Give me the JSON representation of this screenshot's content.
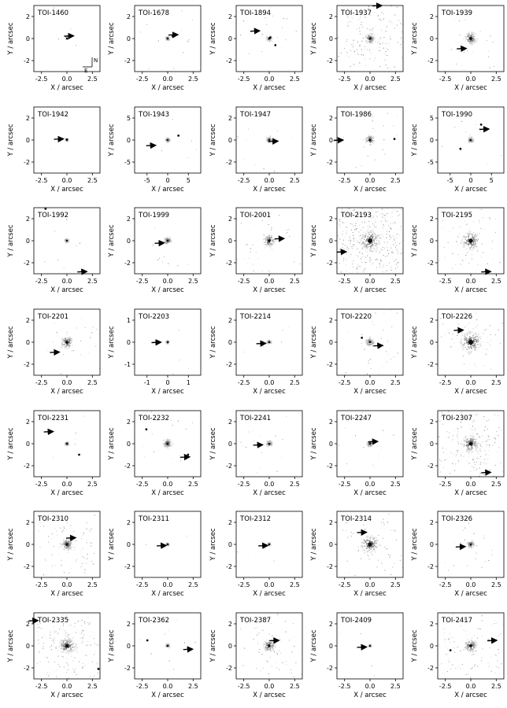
{
  "figure": {
    "axis_labels": {
      "x": "X / arcsec",
      "y": "Y / arcsec"
    },
    "compass": {
      "north": "N",
      "east": "E"
    },
    "panels": [
      {
        "target": "TOI-1460",
        "x_ticks": [
          "-2.5",
          "0.0",
          "2.5"
        ],
        "y_ticks": [
          "2",
          "0",
          "-2"
        ],
        "blob": 0.02,
        "noise": 0.02,
        "companions": [],
        "arrow": {
          "x": 0.5,
          "y": 0.25
        },
        "compass": true
      },
      {
        "target": "TOI-1678",
        "x_ticks": [
          "-2.5",
          "0.0",
          "2.5"
        ],
        "y_ticks": [
          "2",
          "0",
          "-2"
        ],
        "blob": 0.06,
        "noise": 0.05,
        "companions": [
          {
            "x": 0.5,
            "y": 0.2
          }
        ],
        "arrow": {
          "x": 0.85,
          "y": 0.35
        }
      },
      {
        "target": "TOI-1894",
        "x_ticks": [
          "-2.5",
          "0.0",
          "2.5"
        ],
        "y_ticks": [
          "2",
          "0",
          "-2"
        ],
        "blob": 0.1,
        "noise": 0.05,
        "companions": [
          {
            "x": 0.1,
            "y": 0.1
          },
          {
            "x": 0.6,
            "y": -0.6
          }
        ],
        "arrow": {
          "x": -1.1,
          "y": 0.7
        }
      },
      {
        "target": "TOI-1937",
        "x_ticks": [
          "-2.5",
          "0.0",
          "2.5"
        ],
        "y_ticks": [
          "2",
          "0",
          "-2"
        ],
        "blob": 0.22,
        "noise": 0.45,
        "companions": [],
        "arrow": {
          "x": 1.0,
          "y": 3.0
        }
      },
      {
        "target": "TOI-1939",
        "x_ticks": [
          "-2.5",
          "0.0",
          "2.5"
        ],
        "y_ticks": [
          "2",
          "0",
          "-2"
        ],
        "blob": 0.3,
        "noise": 0.15,
        "companions": [],
        "arrow": {
          "x": -0.6,
          "y": -0.9
        }
      },
      {
        "target": "TOI-1942",
        "x_ticks": [
          "-2.5",
          "0.0",
          "2.5"
        ],
        "y_ticks": [
          "2",
          "0",
          "-2"
        ],
        "blob": 0.02,
        "noise": 0.01,
        "companions": [
          {
            "x": 0.0,
            "y": 0.05
          }
        ],
        "arrow": {
          "x": -0.5,
          "y": 0.1
        }
      },
      {
        "target": "TOI-1943",
        "x_ticks": [
          "-5",
          "0",
          "5"
        ],
        "y_ticks": [
          "5",
          "0",
          "-5"
        ],
        "blob": 0.08,
        "noise": 0.03,
        "companions": [
          {
            "x": 2.6,
            "y": 1.0
          }
        ],
        "arrow": {
          "x": -3.3,
          "y": -1.2
        }
      },
      {
        "target": "TOI-1947",
        "x_ticks": [
          "-2.5",
          "0.0",
          "2.5"
        ],
        "y_ticks": [
          "2",
          "0",
          "-2"
        ],
        "blob": 0.1,
        "noise": 0.06,
        "companions": [],
        "arrow": {
          "x": 0.7,
          "y": -0.1
        }
      },
      {
        "target": "TOI-1986",
        "x_ticks": [
          "-2.5",
          "0.0",
          "2.5"
        ],
        "y_ticks": [
          "2",
          "0",
          "-2"
        ],
        "blob": 0.2,
        "noise": 0.08,
        "companions": [
          {
            "x": 2.4,
            "y": 0.1
          }
        ],
        "arrow": {
          "x": -2.8,
          "y": 0.0
        }
      },
      {
        "target": "TOI-1990",
        "x_ticks": [
          "-5",
          "0",
          "5"
        ],
        "y_ticks": [
          "5",
          "0",
          "-5"
        ],
        "blob": 0.1,
        "noise": 0.04,
        "companions": [
          {
            "x": 2.5,
            "y": 3.5
          },
          {
            "x": -2.5,
            "y": -2.0
          }
        ],
        "arrow": {
          "x": 4.0,
          "y": 2.5
        }
      },
      {
        "target": "TOI-1992",
        "x_ticks": [
          "-2.5",
          "0.0",
          "2.5"
        ],
        "y_ticks": [
          "2",
          "0",
          "-2"
        ],
        "blob": 0.06,
        "noise": 0.03,
        "companions": [
          {
            "x": -2.1,
            "y": 2.9
          }
        ],
        "arrow": {
          "x": 1.8,
          "y": -2.8
        }
      },
      {
        "target": "TOI-1999",
        "x_ticks": [
          "-2.5",
          "0.0",
          "2.5"
        ],
        "y_ticks": [
          "2",
          "0",
          "-2"
        ],
        "blob": 0.15,
        "noise": 0.05,
        "companions": [],
        "arrow": {
          "x": -0.5,
          "y": -0.2
        }
      },
      {
        "target": "TOI-2001",
        "x_ticks": [
          "-2.5",
          "0.0",
          "2.5"
        ],
        "y_ticks": [
          "2",
          "0",
          "-2"
        ],
        "blob": 0.28,
        "noise": 0.15,
        "companions": [],
        "arrow": {
          "x": 1.3,
          "y": 0.2
        }
      },
      {
        "target": "TOI-2193",
        "x_ticks": [
          "-2.5",
          "0.0",
          "2.5"
        ],
        "y_ticks": [
          "2",
          "0",
          "-2"
        ],
        "blob": 0.5,
        "noise": 0.85,
        "companions": [],
        "arrow": {
          "x": -2.5,
          "y": -1.0
        }
      },
      {
        "target": "TOI-2195",
        "x_ticks": [
          "-2.5",
          "0.0",
          "2.5"
        ],
        "y_ticks": [
          "2",
          "0",
          "-2"
        ],
        "blob": 0.45,
        "noise": 0.2,
        "companions": [],
        "arrow": {
          "x": 1.8,
          "y": -2.8
        }
      },
      {
        "target": "TOI-2201",
        "x_ticks": [
          "-2.5",
          "0.0",
          "2.5"
        ],
        "y_ticks": [
          "2",
          "0",
          "-2"
        ],
        "blob": 0.28,
        "noise": 0.1,
        "companions": [],
        "arrow": {
          "x": -0.9,
          "y": -0.9
        }
      },
      {
        "target": "TOI-2203",
        "x_ticks": [
          "-1",
          "0",
          "1"
        ],
        "y_ticks": [
          "1",
          "0",
          "-1"
        ],
        "blob": 0.03,
        "noise": 0.02,
        "companions": [],
        "arrow": {
          "x": -0.4,
          "y": 0.0
        }
      },
      {
        "target": "TOI-2214",
        "x_ticks": [
          "-2.5",
          "0.0",
          "2.5"
        ],
        "y_ticks": [
          "2",
          "0",
          "-2"
        ],
        "blob": 0.06,
        "noise": 0.05,
        "companions": [],
        "arrow": {
          "x": -0.5,
          "y": -0.1
        }
      },
      {
        "target": "TOI-2220",
        "x_ticks": [
          "-2.5",
          "0.0",
          "2.5"
        ],
        "y_ticks": [
          "2",
          "0",
          "-2"
        ],
        "blob": 0.18,
        "noise": 0.12,
        "companions": [
          {
            "x": -0.8,
            "y": 0.4
          }
        ],
        "arrow": {
          "x": 1.1,
          "y": -0.3
        }
      },
      {
        "target": "TOI-2226",
        "x_ticks": [
          "-2.5",
          "0.0",
          "2.5"
        ],
        "y_ticks": [
          "2",
          "0",
          "-2"
        ],
        "blob": 0.55,
        "noise": 0.2,
        "companions": [],
        "arrow": {
          "x": -0.9,
          "y": 1.1
        }
      },
      {
        "target": "TOI-2231",
        "x_ticks": [
          "-2.5",
          "0.0",
          "2.5"
        ],
        "y_ticks": [
          "2",
          "0",
          "-2"
        ],
        "blob": 0.05,
        "noise": 0.04,
        "companions": [
          {
            "x": 1.2,
            "y": -1.0
          },
          {
            "x": 0.0,
            "y": 0.0
          }
        ],
        "arrow": {
          "x": -1.5,
          "y": 1.1
        }
      },
      {
        "target": "TOI-2232",
        "x_ticks": [
          "-2.5",
          "0.0",
          "2.5"
        ],
        "y_ticks": [
          "2",
          "0",
          "-2"
        ],
        "blob": 0.2,
        "noise": 0.05,
        "companions": [
          {
            "x": -2.1,
            "y": 1.3
          },
          {
            "x": 2.0,
            "y": -1.0
          }
        ],
        "arrow": {
          "x": 2.0,
          "y": -1.2
        }
      },
      {
        "target": "TOI-2241",
        "x_ticks": [
          "-2.5",
          "0.0",
          "2.5"
        ],
        "y_ticks": [
          "2",
          "0",
          "-2"
        ],
        "blob": 0.12,
        "noise": 0.07,
        "companions": [],
        "arrow": {
          "x": -0.8,
          "y": -0.1
        }
      },
      {
        "target": "TOI-2247",
        "x_ticks": [
          "-2.5",
          "0.0",
          "2.5"
        ],
        "y_ticks": [
          "2",
          "0",
          "-2"
        ],
        "blob": 0.12,
        "noise": 0.06,
        "companions": [],
        "arrow": {
          "x": 0.6,
          "y": 0.2
        }
      },
      {
        "target": "TOI-2307",
        "x_ticks": [
          "-2.5",
          "0.0",
          "2.5"
        ],
        "y_ticks": [
          "2",
          "0",
          "-2"
        ],
        "blob": 0.4,
        "noise": 0.5,
        "companions": [],
        "arrow": {
          "x": 1.8,
          "y": -2.6
        }
      },
      {
        "target": "TOI-2310",
        "x_ticks": [
          "-2.5",
          "0.0",
          "2.5"
        ],
        "y_ticks": [
          "2",
          "0",
          "-2"
        ],
        "blob": 0.28,
        "noise": 0.3,
        "companions": [],
        "arrow": {
          "x": 0.7,
          "y": 0.6
        }
      },
      {
        "target": "TOI-2311",
        "x_ticks": [
          "-2.5",
          "0.0",
          "2.5"
        ],
        "y_ticks": [
          "2",
          "0",
          "-2"
        ],
        "blob": 0.02,
        "noise": 0.02,
        "companions": [],
        "arrow": {
          "x": -0.3,
          "y": -0.1
        }
      },
      {
        "target": "TOI-2312",
        "x_ticks": [
          "-2.5",
          "0.0",
          "2.5"
        ],
        "y_ticks": [
          "2",
          "0",
          "-2"
        ],
        "blob": 0.02,
        "noise": 0.02,
        "companions": [],
        "arrow": {
          "x": -0.3,
          "y": -0.1
        }
      },
      {
        "target": "TOI-2314",
        "x_ticks": [
          "-2.5",
          "0.0",
          "2.5"
        ],
        "y_ticks": [
          "2",
          "0",
          "-2"
        ],
        "blob": 0.45,
        "noise": 0.2,
        "companions": [],
        "arrow": {
          "x": -0.5,
          "y": 1.1
        }
      },
      {
        "target": "TOI-2326",
        "x_ticks": [
          "-2.5",
          "0.0",
          "2.5"
        ],
        "y_ticks": [
          "2",
          "0",
          "-2"
        ],
        "blob": 0.15,
        "noise": 0.1,
        "companions": [],
        "arrow": {
          "x": -0.7,
          "y": -0.2
        }
      },
      {
        "target": "TOI-2335",
        "x_ticks": [
          "-2.5",
          "0.0",
          "2.5"
        ],
        "y_ticks": [
          "2",
          "0",
          "-2"
        ],
        "blob": 0.4,
        "noise": 0.5,
        "companions": [
          {
            "x": 3.1,
            "y": -2.1
          }
        ],
        "arrow": {
          "x": -3.0,
          "y": 2.3
        }
      },
      {
        "target": "TOI-2362",
        "x_ticks": [
          "-2.5",
          "0.0",
          "2.5"
        ],
        "y_ticks": [
          "2",
          "0",
          "-2"
        ],
        "blob": 0.06,
        "noise": 0.05,
        "companions": [
          {
            "x": -2.0,
            "y": 0.5
          }
        ],
        "arrow": {
          "x": 2.3,
          "y": -0.3
        }
      },
      {
        "target": "TOI-2387",
        "x_ticks": [
          "-2.5",
          "0.0",
          "2.5"
        ],
        "y_ticks": [
          "2",
          "0",
          "-2"
        ],
        "blob": 0.28,
        "noise": 0.25,
        "companions": [],
        "arrow": {
          "x": 0.8,
          "y": 0.5
        }
      },
      {
        "target": "TOI-2409",
        "x_ticks": [
          "-2.5",
          "0.0",
          "2.5"
        ],
        "y_ticks": [
          "2",
          "0",
          "-2"
        ],
        "blob": 0.02,
        "noise": 0.02,
        "companions": [],
        "arrow": {
          "x": -0.5,
          "y": -0.1
        }
      },
      {
        "target": "TOI-2417",
        "x_ticks": [
          "-2.5",
          "0.0",
          "2.5"
        ],
        "y_ticks": [
          "2",
          "0",
          "-2"
        ],
        "blob": 0.3,
        "noise": 0.35,
        "companions": [
          {
            "x": -2.0,
            "y": -0.4
          }
        ],
        "arrow": {
          "x": 2.4,
          "y": 0.5
        }
      }
    ]
  }
}
